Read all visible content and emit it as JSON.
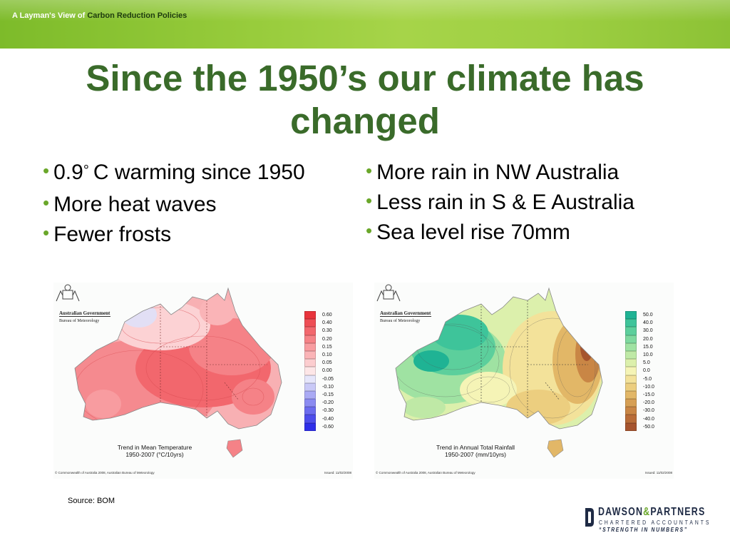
{
  "header": {
    "prefix": "A Layman's View of ",
    "accent": "Carbon Reduction Policies"
  },
  "title": "Since the 1950’s our climate has changed",
  "bullets_left": [
    {
      "pre": "0.9",
      "sup": "°",
      "post": "C warming since 1950"
    },
    {
      "text": "More heat waves"
    },
    {
      "text": "Fewer frosts"
    }
  ],
  "bullets_right": [
    {
      "text": "More rain in NW Australia"
    },
    {
      "text": "Less rain in S & E Australia"
    },
    {
      "text": "Sea level rise 70mm"
    }
  ],
  "maps": {
    "temperature": {
      "gov_title": "Australian Government",
      "gov_subtitle": "Bureau of Meteorology",
      "caption_line1": "Trend in Mean Temperature",
      "caption_line2": "1950-2007 (°C/10yrs)",
      "copyright": "© Commonwealth of Australia 2008, Australian Bureau of Meteorology",
      "issued": "Issued: 11/02/2008",
      "legend": [
        {
          "label": "0.60",
          "color": "#e8343c"
        },
        {
          "label": "0.40",
          "color": "#ee4e55"
        },
        {
          "label": "0.30",
          "color": "#f2676d"
        },
        {
          "label": "0.20",
          "color": "#f58287"
        },
        {
          "label": "0.15",
          "color": "#f89ca0"
        },
        {
          "label": "0.10",
          "color": "#fab4b7"
        },
        {
          "label": "0.05",
          "color": "#fccdcf"
        },
        {
          "label": "0.00",
          "color": "#fde6e7"
        },
        {
          "label": "-0.05",
          "color": "#e6e6fb"
        },
        {
          "label": "-0.10",
          "color": "#c9c9f7"
        },
        {
          "label": "-0.15",
          "color": "#aaaaf4"
        },
        {
          "label": "-0.20",
          "color": "#8b8bf1"
        },
        {
          "label": "-0.30",
          "color": "#6c6cee"
        },
        {
          "label": "-0.40",
          "color": "#4d4deb"
        },
        {
          "label": "-0.60",
          "color": "#2e2ee8"
        }
      ]
    },
    "rainfall": {
      "gov_title": "Australian Government",
      "gov_subtitle": "Bureau of Meteorology",
      "caption_line1": "Trend in Annual Total Rainfall",
      "caption_line2": "1950-2007 (mm/10yrs)",
      "copyright": "© Commonwealth of Australia 2008, Australian Bureau of Meteorology",
      "issued": "Issued: 11/02/2008",
      "legend": [
        {
          "label": "50.0",
          "color": "#1fb394"
        },
        {
          "label": "40.0",
          "color": "#3ec49a"
        },
        {
          "label": "30.0",
          "color": "#5ccf9c"
        },
        {
          "label": "20.0",
          "color": "#7ed99f"
        },
        {
          "label": "15.0",
          "color": "#9fe2a2"
        },
        {
          "label": "10.0",
          "color": "#bfe9a6"
        },
        {
          "label": "5.0",
          "color": "#dcf0ac"
        },
        {
          "label": "0.0",
          "color": "#f5f4b6"
        },
        {
          "label": "-5.0",
          "color": "#f3e29a"
        },
        {
          "label": "-10.0",
          "color": "#ecce7f"
        },
        {
          "label": "-15.0",
          "color": "#e2b767"
        },
        {
          "label": "-20.0",
          "color": "#d69f54"
        },
        {
          "label": "-30.0",
          "color": "#c98645"
        },
        {
          "label": "-40.0",
          "color": "#b96c38"
        },
        {
          "label": "-50.0",
          "color": "#a6542e"
        }
      ]
    }
  },
  "source": "Source: BOM",
  "company": {
    "name_part1": "DAWSON",
    "name_amp": "&",
    "name_part2": "PARTNERS",
    "subtitle": "CHARTERED ACCOUNTANTS",
    "tagline": "“STRENGTH IN NUMBERS”"
  }
}
